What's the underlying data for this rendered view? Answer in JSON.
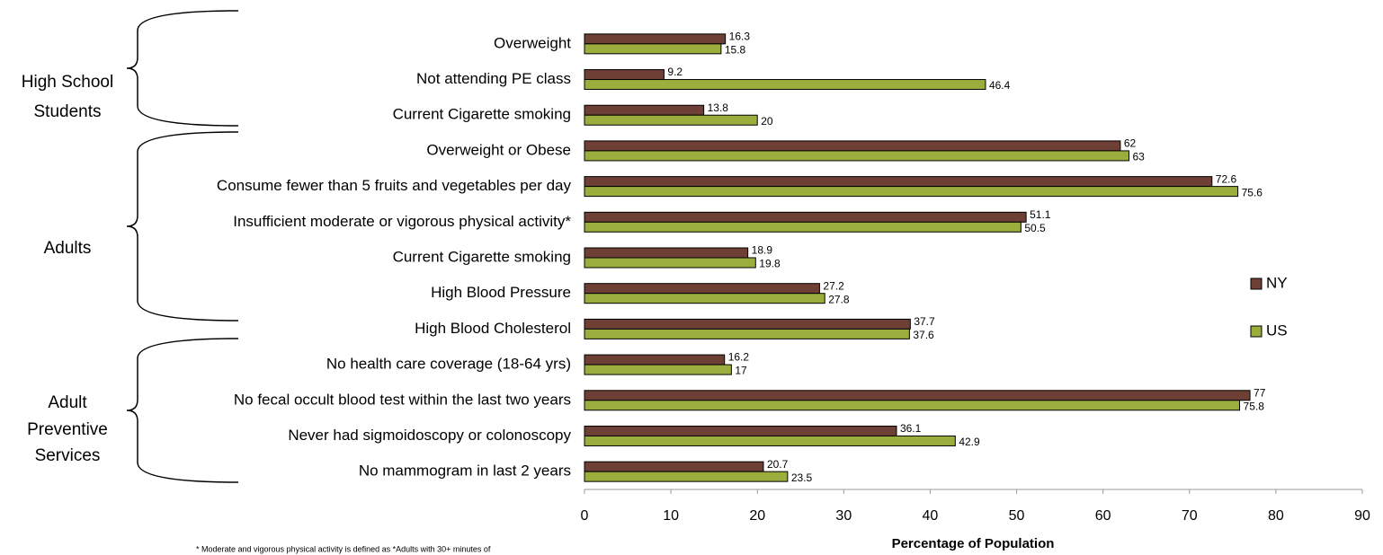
{
  "chart_data": {
    "type": "hbar",
    "categories": [
      "Overweight",
      "Not attending PE class",
      "Current Cigarette smoking",
      "Overweight or Obese",
      "Consume fewer than 5 fruits and vegetables per day",
      "Insufficient moderate or vigorous physical activity*",
      "Current Cigarette smoking",
      "High Blood Pressure",
      "High Blood Cholesterol",
      "No health care coverage (18-64 yrs)",
      "No fecal occult blood test within the last two years",
      "Never had sigmoidoscopy or colonoscopy",
      "No mammogram in last 2 years"
    ],
    "series": [
      {
        "name": "NY",
        "color": "#6e3f35",
        "values": [
          16.3,
          9.2,
          13.8,
          62,
          72.6,
          51.1,
          18.9,
          27.2,
          37.7,
          16.2,
          77,
          36.1,
          20.7
        ]
      },
      {
        "name": "US",
        "color": "#9bad3d",
        "values": [
          15.8,
          46.4,
          20,
          63,
          75.6,
          50.5,
          19.8,
          27.8,
          37.6,
          17,
          75.8,
          42.9,
          23.5
        ]
      }
    ],
    "group_labels": [
      [
        "High School",
        "Students"
      ],
      [
        "Adults"
      ],
      [
        "Adult",
        "Preventive",
        "Services"
      ]
    ],
    "xlabel": "Percentage of Population",
    "xlim": [
      0,
      90
    ],
    "xticks": [
      0,
      10,
      20,
      30,
      40,
      50,
      60,
      70,
      80,
      90
    ],
    "legend": "right",
    "grid": false,
    "footnote": "* Moderate and vigorous physical activity is defined as *Adults with 30+ minutes of"
  }
}
